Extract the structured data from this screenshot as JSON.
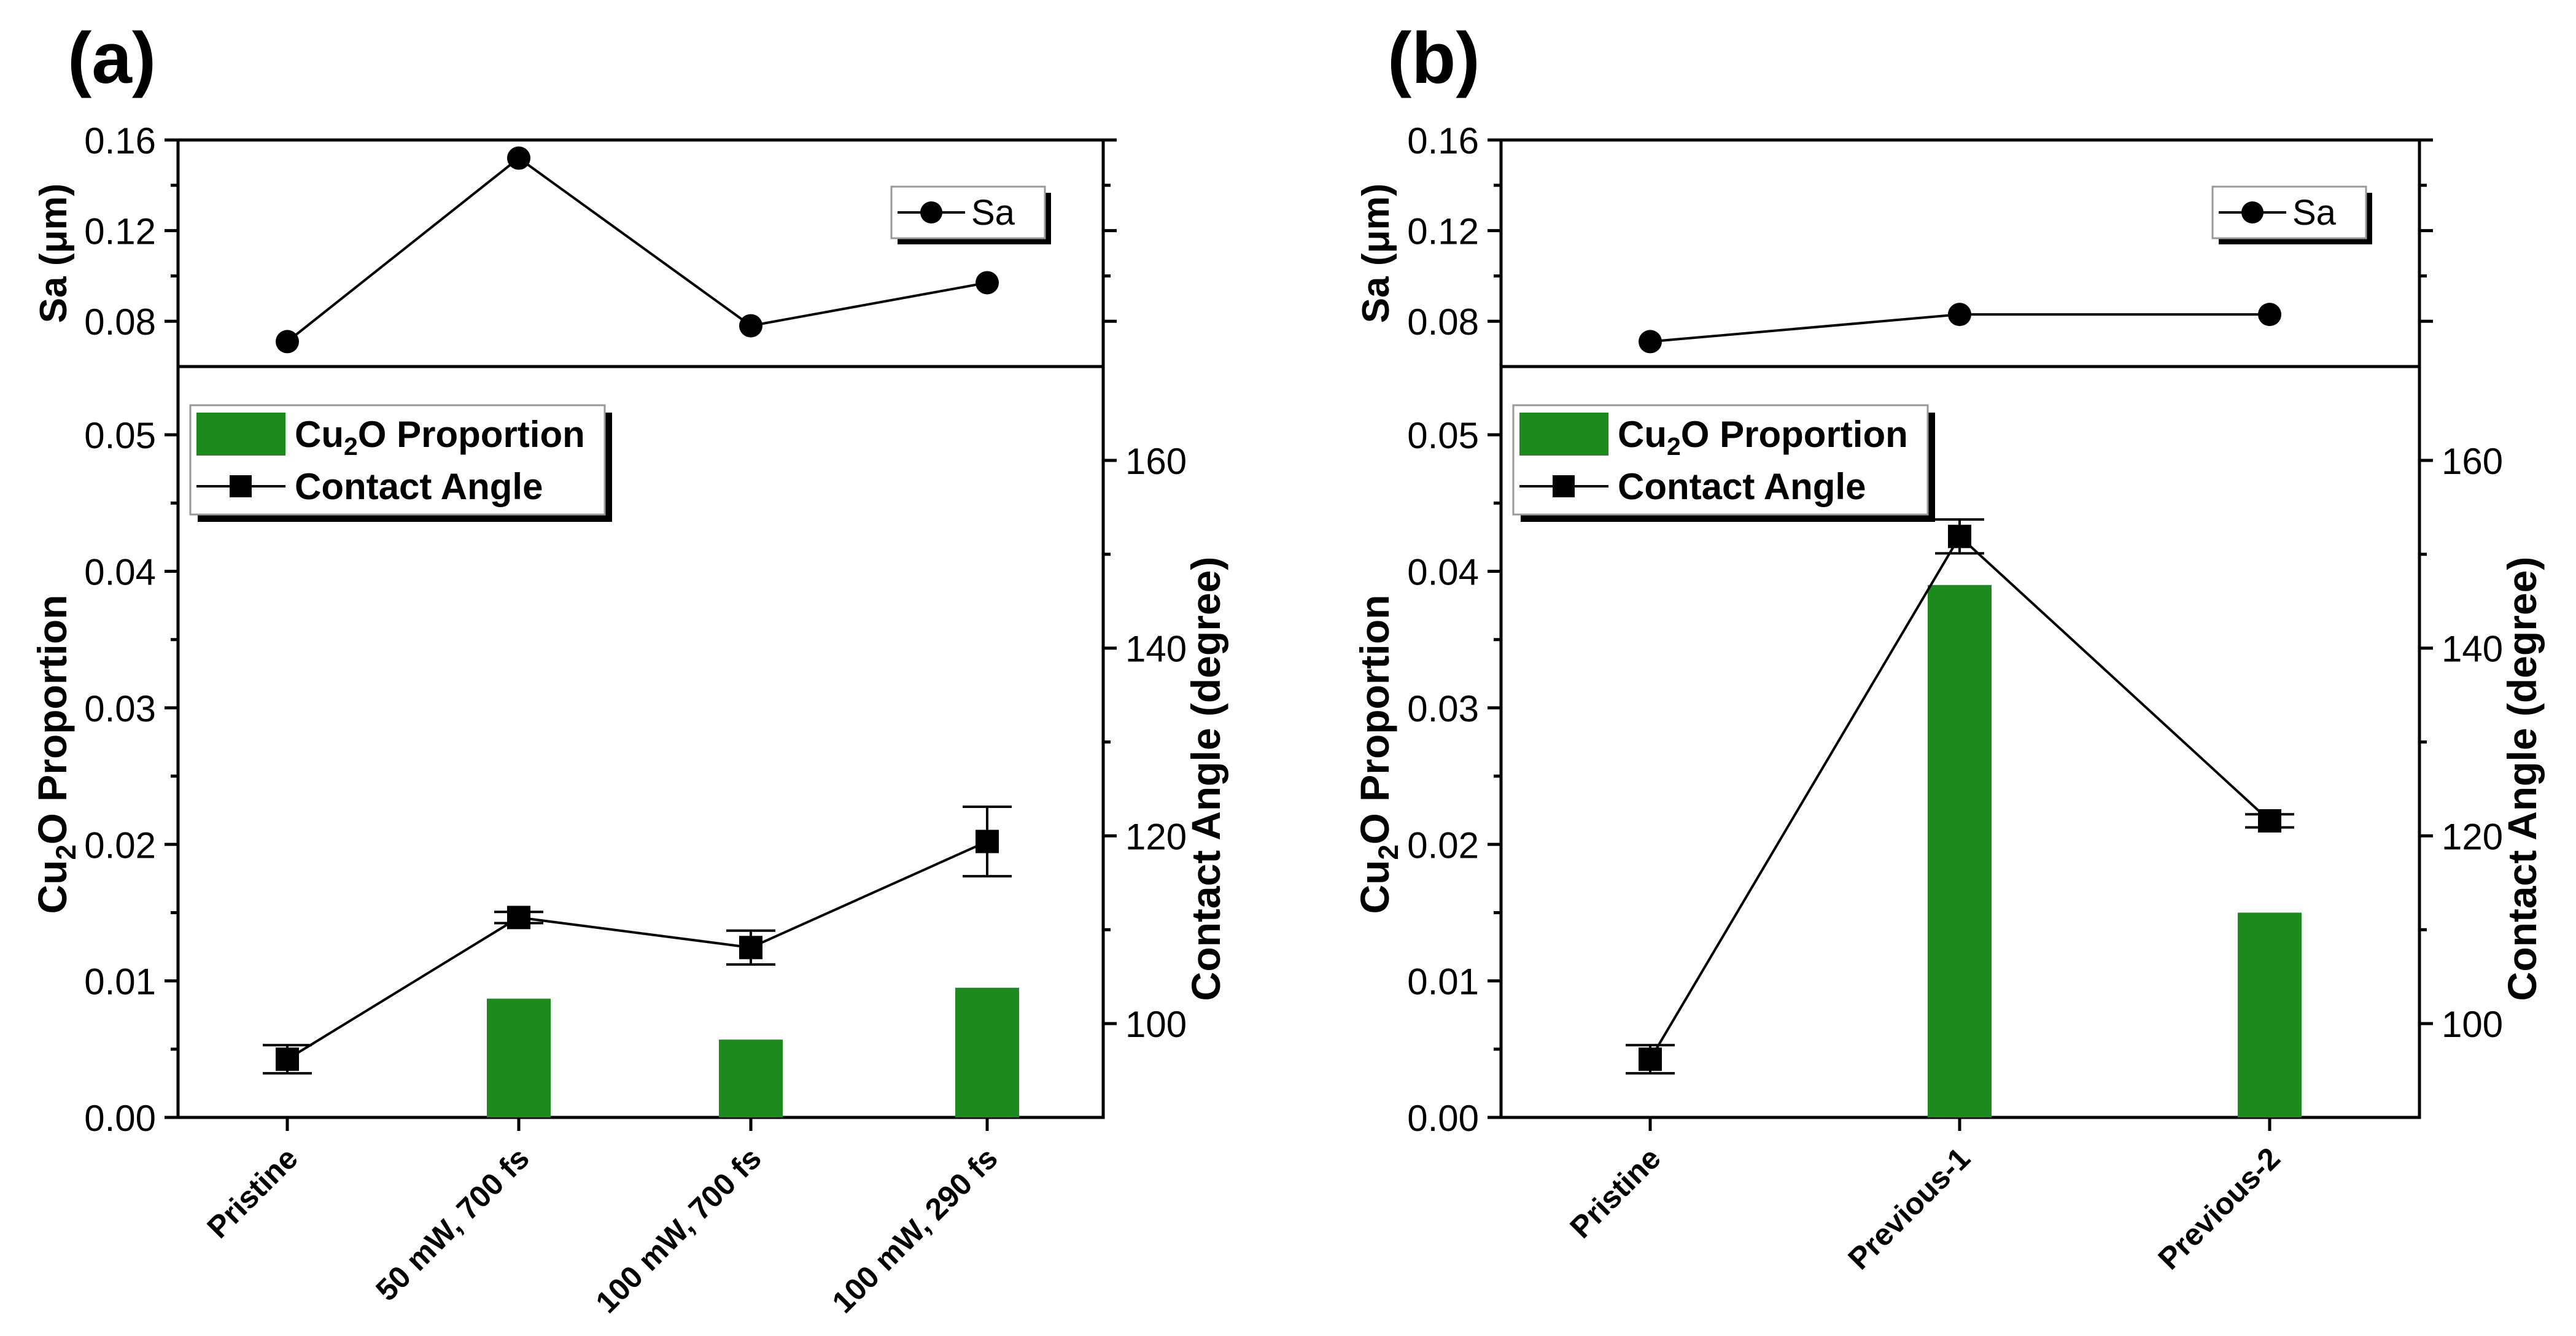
{
  "colors": {
    "bar": "#1e8a1e",
    "line": "#000000",
    "axis": "#000000",
    "background": "#ffffff"
  },
  "chart_data": [
    {
      "type": "bar",
      "panel_label": "(a)",
      "categories": [
        "Pristine",
        "50 mW, 700 fs",
        "100 mW, 700 fs",
        "100 mW, 290 fs"
      ],
      "top": {
        "type": "line",
        "ylabel": "Sa (μm)",
        "ylim": [
          0.06,
          0.16
        ],
        "yticks": [
          "0.08",
          "0.12",
          "0.16"
        ],
        "legend": "Sa",
        "values": [
          0.071,
          0.152,
          0.078,
          0.097
        ]
      },
      "bottom": {
        "ylabel_left": "Cu2O Proportion",
        "ylabel_right": "Contact Angle (degree)",
        "ylim_left": [
          0,
          0.055
        ],
        "ylim_right": [
          90,
          170
        ],
        "yticks_left": [
          "0.00",
          "0.01",
          "0.02",
          "0.03",
          "0.04",
          "0.05"
        ],
        "yticks_right": [
          "100",
          "120",
          "140",
          "160"
        ],
        "legend_bar": "Cu2O Proportion",
        "legend_line": "Contact Angle",
        "bar_values": [
          0,
          0.0087,
          0.0057,
          0.0095
        ],
        "line_values": [
          96.2,
          111.3,
          108.1,
          119.4
        ],
        "line_errors": [
          1.5,
          0.6,
          1.8,
          3.7
        ]
      }
    },
    {
      "type": "bar",
      "panel_label": "(b)",
      "categories": [
        "Pristine",
        "Previous-1",
        "Previous-2"
      ],
      "top": {
        "type": "line",
        "ylabel": "Sa (μm)",
        "ylim": [
          0.06,
          0.16
        ],
        "yticks": [
          "0.08",
          "0.12",
          "0.16"
        ],
        "legend": "Sa",
        "values": [
          0.071,
          0.083,
          0.083
        ]
      },
      "bottom": {
        "ylabel_left": "Cu2O Proportion",
        "ylabel_right": "Contact Angle (degree)",
        "ylim_left": [
          0,
          0.055
        ],
        "ylim_right": [
          90,
          170
        ],
        "yticks_left": [
          "0.00",
          "0.01",
          "0.02",
          "0.03",
          "0.04",
          "0.05"
        ],
        "yticks_right": [
          "100",
          "120",
          "140",
          "160"
        ],
        "legend_bar": "Cu2O Proportion",
        "legend_line": "Contact Angle",
        "bar_values": [
          0,
          0.039,
          0.015
        ],
        "line_values": [
          96.2,
          151.9,
          121.6
        ],
        "line_errors": [
          1.5,
          1.8,
          0.7
        ]
      }
    }
  ]
}
